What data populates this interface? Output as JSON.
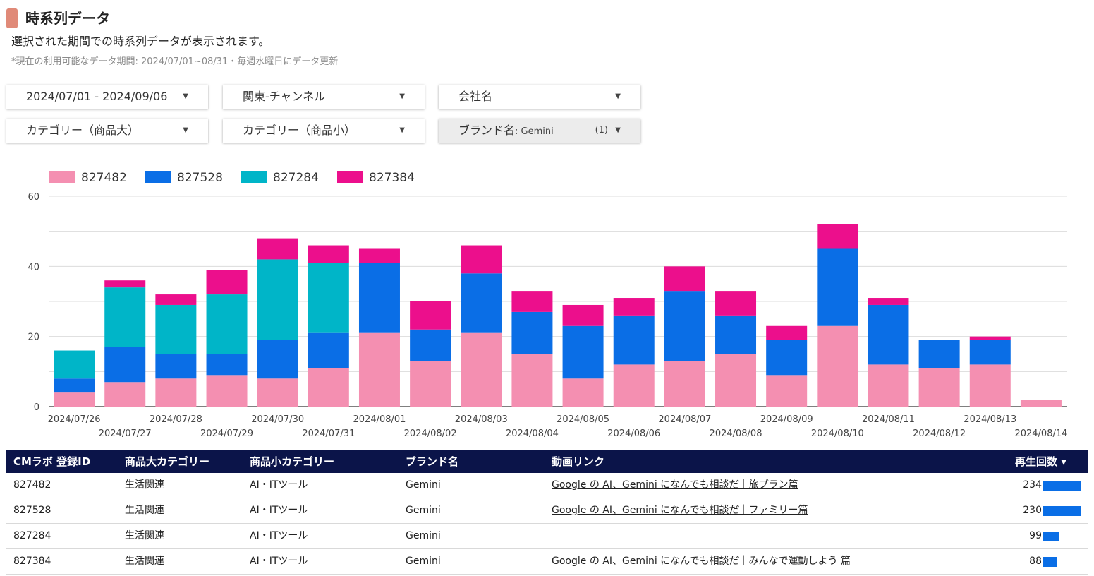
{
  "header": {
    "title": "時系列データ",
    "subtitle": "選択された期間での時系列データが表示されます。",
    "note": "*現在の利用可能なデータ期間: 2024/07/01~08/31・毎週水曜日にデータ更新"
  },
  "filters": {
    "date_range": "2024/07/01 - 2024/09/06",
    "region": "関東-チャンネル",
    "company": "会社名",
    "category_large": "カテゴリー（商品大）",
    "category_small": "カテゴリー（商品小）",
    "brand_label": "ブランド名",
    "brand_value": ": Gemini",
    "brand_count": "(1)"
  },
  "chart_data": {
    "type": "bar",
    "stacked": true,
    "ylim": [
      0,
      60
    ],
    "yticks": [
      0,
      20,
      40,
      60
    ],
    "categories": [
      "2024/07/26",
      "2024/07/27",
      "2024/07/28",
      "2024/07/29",
      "2024/07/30",
      "2024/07/31",
      "2024/08/01",
      "2024/08/02",
      "2024/08/03",
      "2024/08/04",
      "2024/08/05",
      "2024/08/06",
      "2024/08/07",
      "2024/08/08",
      "2024/08/09",
      "2024/08/10",
      "2024/08/11",
      "2024/08/12",
      "2024/08/13",
      "2024/08/14"
    ],
    "series": [
      {
        "name": "827482",
        "color": "#f48fb1",
        "values": [
          4,
          7,
          8,
          9,
          8,
          11,
          21,
          13,
          21,
          15,
          8,
          12,
          13,
          15,
          9,
          23,
          12,
          11,
          12,
          2
        ]
      },
      {
        "name": "827528",
        "color": "#0a6ee6",
        "values": [
          4,
          10,
          7,
          6,
          11,
          10,
          20,
          9,
          17,
          12,
          15,
          14,
          20,
          11,
          10,
          22,
          17,
          8,
          7,
          0
        ]
      },
      {
        "name": "827284",
        "color": "#00b5c8",
        "values": [
          8,
          17,
          14,
          17,
          23,
          20,
          0,
          0,
          0,
          0,
          0,
          0,
          0,
          0,
          0,
          0,
          0,
          0,
          0,
          0
        ]
      },
      {
        "name": "827384",
        "color": "#ec0f8c",
        "values": [
          0,
          2,
          3,
          7,
          6,
          5,
          4,
          8,
          8,
          6,
          6,
          5,
          7,
          7,
          4,
          7,
          2,
          0,
          1,
          0
        ]
      }
    ]
  },
  "table": {
    "headers": {
      "id": "CMラボ 登録ID",
      "cat_large": "商品大カテゴリー",
      "cat_small": "商品小カテゴリー",
      "brand": "ブランド名",
      "link": "動画リンク",
      "plays": "再生回数 ▾"
    },
    "max_plays": 234,
    "rows": [
      {
        "id": "827482",
        "cat_large": "生活関連",
        "cat_small": "AI・ITツール",
        "brand": "Gemini",
        "link": "Google の AI、Gemini になんでも相談だ｜旅プラン篇",
        "plays": 234
      },
      {
        "id": "827528",
        "cat_large": "生活関連",
        "cat_small": "AI・ITツール",
        "brand": "Gemini",
        "link": "Google の AI、Gemini になんでも相談だ｜ファミリー篇",
        "plays": 230
      },
      {
        "id": "827284",
        "cat_large": "生活関連",
        "cat_small": "AI・ITツール",
        "brand": "Gemini",
        "link": "",
        "plays": 99
      },
      {
        "id": "827384",
        "cat_large": "生活関連",
        "cat_small": "AI・ITツール",
        "brand": "Gemini",
        "link": "Google の AI、Gemini になんでも相談だ｜みんなで運動しよう 篇",
        "plays": 88
      }
    ]
  }
}
